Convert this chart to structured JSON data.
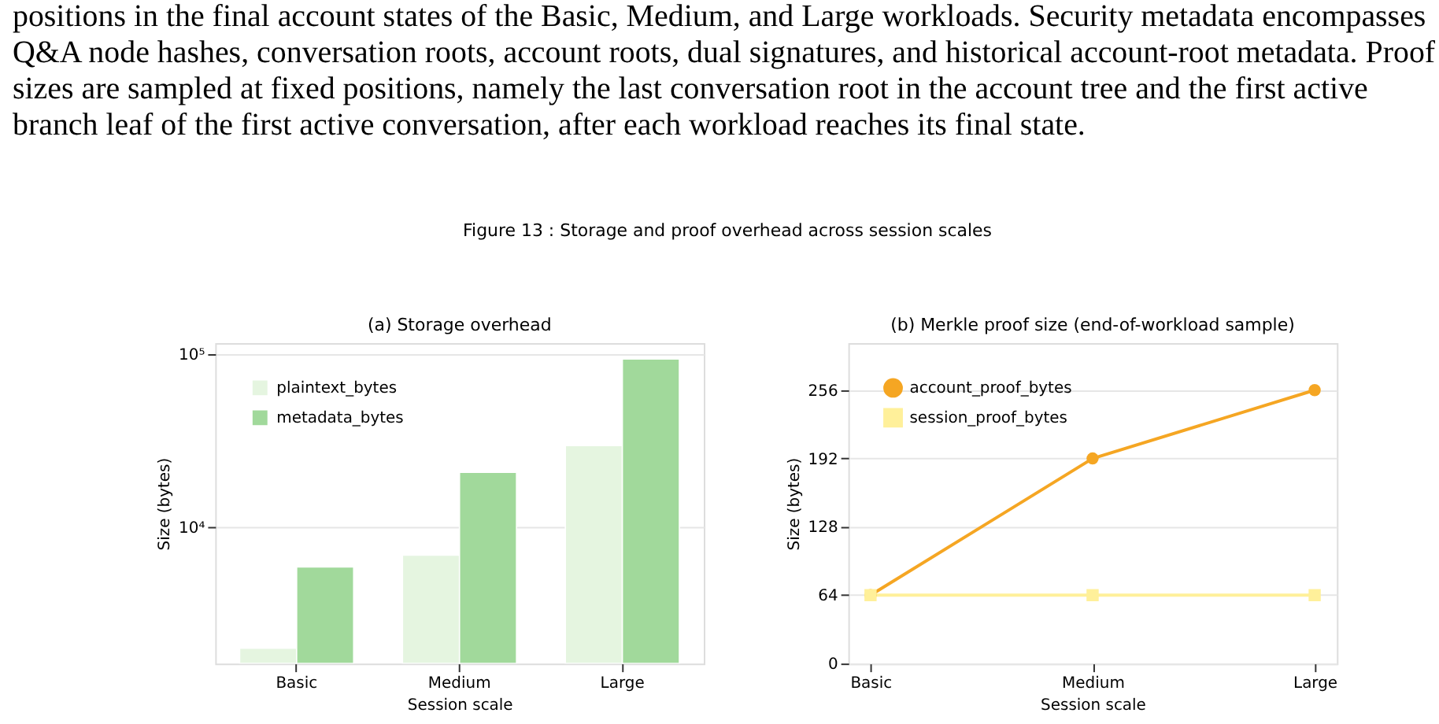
{
  "chart_data": [
    {
      "type": "bar",
      "title": "(a) Storage overhead",
      "xlabel": "Session scale",
      "ylabel": "Size (bytes)",
      "annotations": [
        "positions in the final account states of the Basic, Medium, and Large workloads. Security metadata encompasses Q&A node hashes, conversation roots, account roots, dual signatures, and historical account-root metadata. Proof sizes are sampled at fixed positions, namely the last conversation root in the account tree and the first active branch leaf of the first active conversation, after each workload reaches its final state.",
        "Figure 13 : Storage and proof overhead across session scales"
      ],
      "categories": [
        "Basic",
        "Medium",
        "Large"
      ],
      "series": [
        {
          "name": "plaintext_bytes",
          "color": "#e5f5e0",
          "values": [
            2000,
            6900,
            29700
          ]
        },
        {
          "name": "metadata_bytes",
          "color": "#a1d99b",
          "values": [
            5900,
            20800,
            94000
          ]
        }
      ],
      "log": "y",
      "ylim": [
        1630,
        116000
      ],
      "yticks": [
        {
          "value": 10000,
          "label": "10⁴"
        },
        {
          "value": 100000,
          "label": "10⁵"
        }
      ],
      "grid": "y",
      "legend": "top left"
    },
    {
      "type": "line",
      "title": "(b) Merkle proof size (end-of-workload sample)",
      "xlabel": "Session scale",
      "ylabel": "Size (bytes)",
      "categories": [
        "Basic",
        "Medium",
        "Large"
      ],
      "series": [
        {
          "name": "account_proof_bytes",
          "color": "#f5a623",
          "values": [
            64,
            192,
            256
          ],
          "marker": "circle"
        },
        {
          "name": "session_proof_bytes",
          "color": "#fff09a",
          "values": [
            64,
            64,
            64
          ],
          "marker": "square"
        }
      ],
      "ylim": [
        0,
        300
      ],
      "yticks": [
        0,
        64,
        128,
        192,
        256
      ],
      "grid": "y",
      "legend": "top left",
      "line_style": "solid"
    }
  ]
}
